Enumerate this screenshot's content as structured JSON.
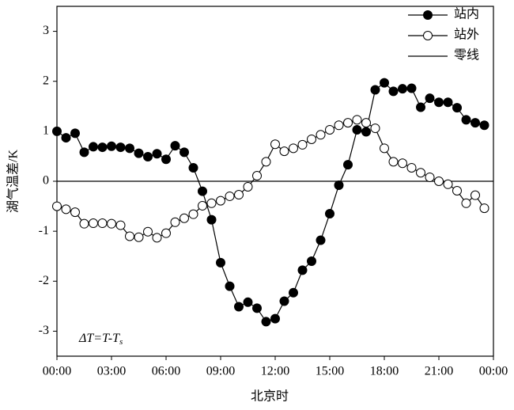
{
  "chart_data": {
    "type": "line",
    "xlabel": "北京时",
    "ylabel": "湖气温差/K",
    "annotation": {
      "main": "ΔT=T-T",
      "sub": "s"
    },
    "x": [
      0,
      0.5,
      1,
      1.5,
      2,
      2.5,
      3,
      3.5,
      4,
      4.5,
      5,
      5.5,
      6,
      6.5,
      7,
      7.5,
      8,
      8.5,
      9,
      9.5,
      10,
      10.5,
      11,
      11.5,
      12,
      12.5,
      13,
      13.5,
      14,
      14.5,
      15,
      15.5,
      16,
      16.5,
      17,
      17.5,
      18,
      18.5,
      19,
      19.5,
      20,
      20.5,
      21,
      21.5,
      22,
      22.5,
      23,
      23.5
    ],
    "series": [
      {
        "name": "站内",
        "color": "#000000",
        "marker": "filled",
        "values": [
          1.0,
          0.87,
          0.96,
          0.58,
          0.69,
          0.68,
          0.7,
          0.68,
          0.66,
          0.56,
          0.49,
          0.55,
          0.44,
          0.71,
          0.58,
          0.27,
          -0.2,
          -0.77,
          -1.63,
          -2.1,
          -2.51,
          -2.42,
          -2.54,
          -2.81,
          -2.75,
          -2.4,
          -2.23,
          -1.78,
          -1.6,
          -1.18,
          -0.65,
          -0.08,
          0.33,
          1.03,
          0.99,
          1.83,
          1.97,
          1.8,
          1.85,
          1.86,
          1.48,
          1.66,
          1.58,
          1.58,
          1.47,
          1.23,
          1.17,
          1.12
        ]
      },
      {
        "name": "站外",
        "color": "#000000",
        "marker": "open",
        "values": [
          -0.5,
          -0.56,
          -0.62,
          -0.85,
          -0.84,
          -0.84,
          -0.85,
          -0.88,
          -1.1,
          -1.12,
          -1.01,
          -1.13,
          -1.04,
          -0.82,
          -0.74,
          -0.66,
          -0.49,
          -0.44,
          -0.39,
          -0.3,
          -0.27,
          -0.11,
          0.11,
          0.39,
          0.74,
          0.6,
          0.66,
          0.73,
          0.84,
          0.93,
          1.03,
          1.12,
          1.17,
          1.23,
          1.17,
          1.06,
          0.66,
          0.39,
          0.36,
          0.27,
          0.17,
          0.08,
          0.0,
          -0.06,
          -0.19,
          -0.44,
          -0.28,
          -0.54
        ]
      }
    ],
    "reference_line": {
      "name": "零线",
      "value": 0,
      "color": "#000000"
    },
    "xlim": [
      0,
      24
    ],
    "xticks": [
      {
        "value": 0,
        "label": "00:00"
      },
      {
        "value": 3,
        "label": "03:00"
      },
      {
        "value": 6,
        "label": "06:00"
      },
      {
        "value": 9,
        "label": "09:00"
      },
      {
        "value": 12,
        "label": "12:00"
      },
      {
        "value": 15,
        "label": "15:00"
      },
      {
        "value": 18,
        "label": "18:00"
      },
      {
        "value": 21,
        "label": "21:00"
      },
      {
        "value": 24,
        "label": "00:00"
      }
    ],
    "ylim": [
      -3.5,
      3.5
    ],
    "yticks": [
      -3,
      -2,
      -1,
      0,
      1,
      2,
      3
    ],
    "grid": false,
    "legend": "upper right"
  }
}
